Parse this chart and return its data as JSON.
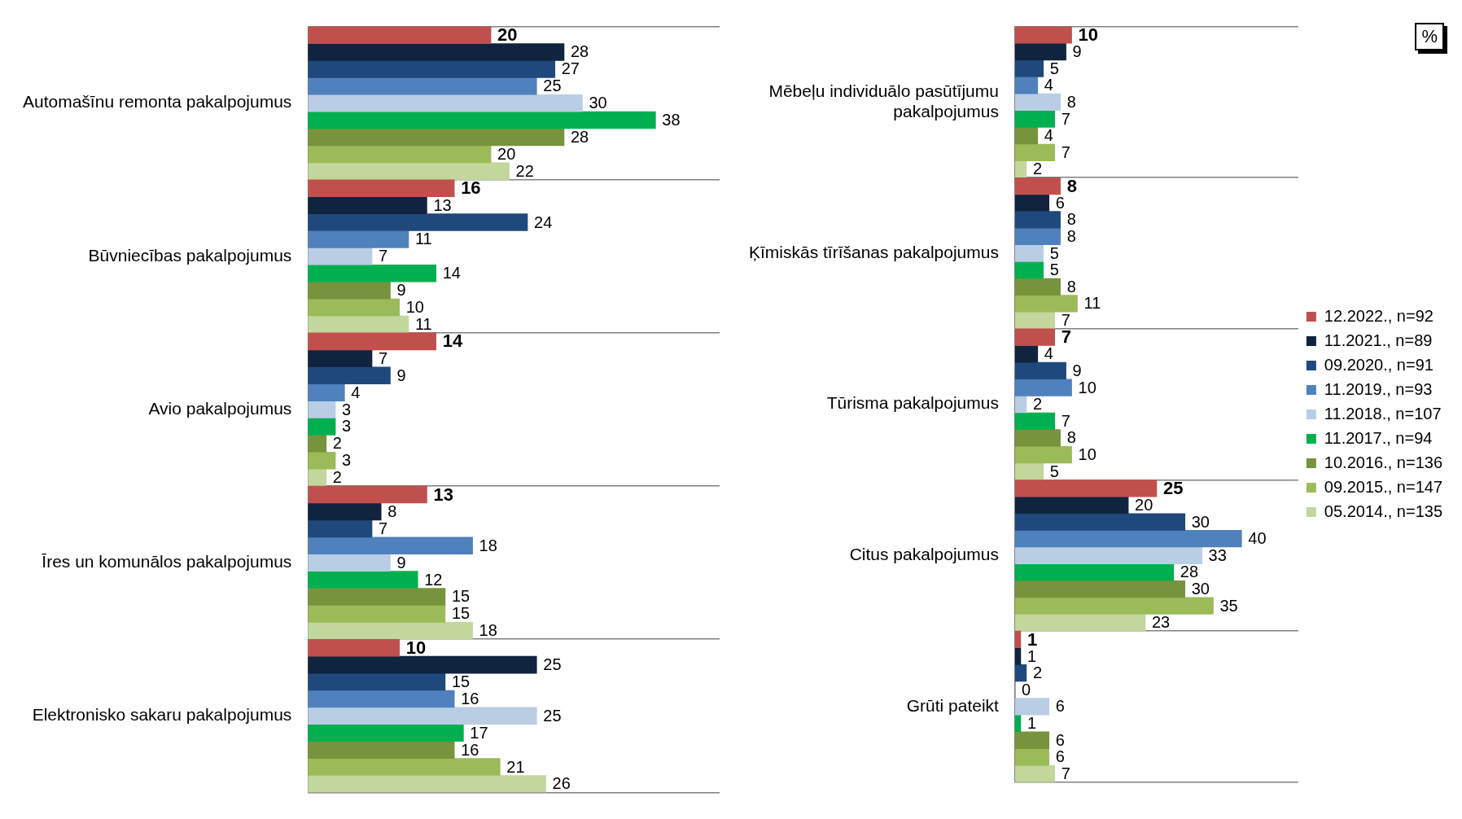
{
  "chart_data": [
    {
      "type": "bar",
      "orientation": "horizontal",
      "categories": [
        "Automašīnu remonta pakalpojumus",
        "Būvniecības pakalpojumus",
        "Avio pakalpojumus",
        "Īres un komunālos pakalpojumus",
        "Elektronisko sakaru pakalpojumus"
      ],
      "series": [
        {
          "color": "#c0504d",
          "values": [
            20,
            16,
            14,
            13,
            10
          ]
        },
        {
          "color": "#10243f",
          "values": [
            28,
            13,
            7,
            8,
            25
          ]
        },
        {
          "color": "#1f497d",
          "values": [
            27,
            24,
            9,
            7,
            15
          ]
        },
        {
          "color": "#4f81bd",
          "values": [
            25,
            11,
            4,
            18,
            16
          ]
        },
        {
          "color": "#b9cde5",
          "values": [
            30,
            7,
            3,
            9,
            25
          ]
        },
        {
          "color": "#00b050",
          "values": [
            38,
            14,
            3,
            12,
            17
          ]
        },
        {
          "color": "#77933c",
          "values": [
            28,
            9,
            2,
            15,
            16
          ]
        },
        {
          "color": "#9bbb59",
          "values": [
            20,
            10,
            3,
            15,
            21
          ]
        },
        {
          "color": "#c3d69b",
          "values": [
            22,
            11,
            2,
            18,
            26
          ]
        }
      ],
      "data_labels": true,
      "grid": "y",
      "legend": false
    },
    {
      "type": "bar",
      "orientation": "horizontal",
      "categories": [
        "Mēbeļu individuālo pasūtījumu pakalpojumus",
        "Ķīmiskās tīrīšanas pakalpojumus",
        "Tūrisma pakalpojumus",
        "Citus pakalpojumus",
        "Grūti pateikt"
      ],
      "series": [
        {
          "name": "12.2022., n=92",
          "color": "#c0504d",
          "values": [
            10,
            8,
            7,
            25,
            1
          ]
        },
        {
          "name": "11.2021., n=89",
          "color": "#10243f",
          "values": [
            9,
            6,
            4,
            20,
            1
          ]
        },
        {
          "name": "09.2020., n=91",
          "color": "#1f497d",
          "values": [
            5,
            8,
            9,
            30,
            2
          ]
        },
        {
          "name": "11.2019., n=93",
          "color": "#4f81bd",
          "values": [
            4,
            8,
            10,
            40,
            0
          ]
        },
        {
          "name": "11.2018., n=107",
          "color": "#b9cde5",
          "values": [
            8,
            5,
            2,
            33,
            6
          ]
        },
        {
          "name": "11.2017., n=94",
          "color": "#00b050",
          "values": [
            7,
            5,
            7,
            28,
            1
          ]
        },
        {
          "name": "10.2016., n=136",
          "color": "#77933c",
          "values": [
            4,
            8,
            8,
            30,
            6
          ]
        },
        {
          "name": "09.2015., n=147",
          "color": "#9bbb59",
          "values": [
            7,
            11,
            10,
            35,
            6
          ]
        },
        {
          "name": "05.2014., n=135",
          "color": "#c3d69b",
          "values": [
            2,
            7,
            5,
            23,
            7
          ]
        }
      ],
      "data_labels": true,
      "grid": "y",
      "legend": "right",
      "annotations": [
        "%"
      ]
    }
  ]
}
